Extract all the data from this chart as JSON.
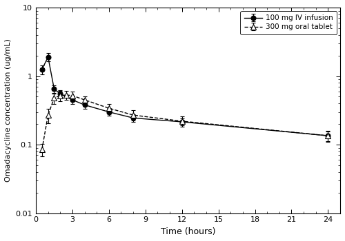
{
  "iv_time": [
    0.5,
    1.0,
    1.5,
    2.0,
    3.0,
    4.0,
    6.0,
    8.0,
    12.0,
    24.0
  ],
  "iv_conc": [
    1.25,
    1.9,
    0.65,
    0.55,
    0.45,
    0.38,
    0.3,
    0.245,
    0.215,
    0.135
  ],
  "iv_err": [
    0.18,
    0.25,
    0.09,
    0.07,
    0.055,
    0.045,
    0.038,
    0.03,
    0.025,
    0.022
  ],
  "oral_time": [
    0.5,
    1.0,
    1.5,
    2.0,
    2.5,
    3.0,
    4.0,
    6.0,
    8.0,
    12.0,
    24.0
  ],
  "oral_conc": [
    0.085,
    0.27,
    0.48,
    0.52,
    0.53,
    0.52,
    0.45,
    0.34,
    0.27,
    0.22,
    0.135
  ],
  "oral_err": [
    0.018,
    0.065,
    0.09,
    0.085,
    0.08,
    0.075,
    0.06,
    0.055,
    0.045,
    0.038,
    0.025
  ],
  "ylabel": "Omadacycline concentration (ug/mL)",
  "xlabel": "Time (hours)",
  "ylim": [
    0.01,
    10
  ],
  "xlim": [
    0,
    25
  ],
  "xticks": [
    0,
    3,
    6,
    9,
    12,
    15,
    18,
    21,
    24
  ],
  "yticks": [
    0.01,
    0.1,
    1,
    10
  ],
  "ytick_labels": [
    "0.01",
    "0.1",
    "1",
    "10"
  ],
  "iv_label": "100 mg IV infusion",
  "oral_label": "300 mg oral tablet",
  "line_color": "#000000",
  "background_color": "#ffffff",
  "figure_width": 5.0,
  "figure_height": 3.5,
  "dpi": 100
}
